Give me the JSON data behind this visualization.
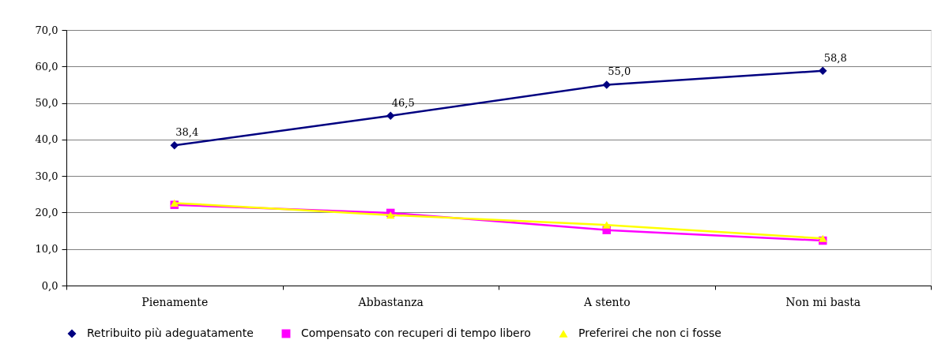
{
  "chart_data": {
    "type": "line",
    "categories": [
      "Pienamente",
      "Abbastanza",
      "A stento",
      "Non mi basta"
    ],
    "series": [
      {
        "name": "Retribuito più adeguatamente",
        "color": "#000080",
        "values": [
          38.4,
          46.5,
          55.0,
          58.8
        ],
        "value_labels": [
          "38,4",
          "46,5",
          "55,0",
          "58,8"
        ],
        "marker": "diamond"
      },
      {
        "name": "Compensato con recuperi di tempo libero",
        "color": "#ff00ff",
        "values": [
          22.1,
          19.9,
          15.2,
          12.3
        ],
        "marker": "square"
      },
      {
        "name": "Preferirei che non ci fosse",
        "color": "#ffff00",
        "values": [
          22.6,
          19.3,
          16.6,
          12.9
        ],
        "marker": "triangle"
      }
    ],
    "ylim": [
      0,
      70
    ],
    "yticks": [
      {
        "value": 0,
        "label": "0,0"
      },
      {
        "value": 10,
        "label": "10,0"
      },
      {
        "value": 20,
        "label": "20,0"
      },
      {
        "value": 30,
        "label": "30,0"
      },
      {
        "value": 40,
        "label": "40,0"
      },
      {
        "value": 50,
        "label": "50,0"
      },
      {
        "value": 60,
        "label": "60,0"
      },
      {
        "value": 70,
        "label": "70,0"
      }
    ],
    "grid": "y",
    "legend": "bottom",
    "line_style": "solid"
  }
}
